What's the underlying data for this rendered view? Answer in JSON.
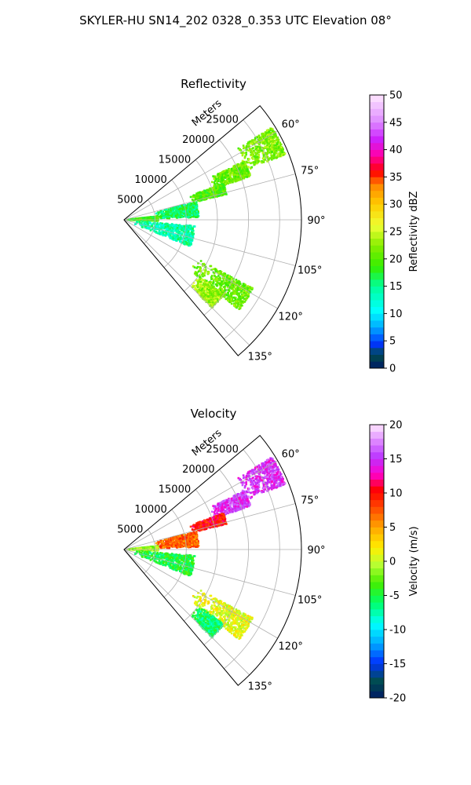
{
  "suptitle": "SKYLER-HU  SN14_202  0328_0.353 UTC Elevation 08°",
  "chart_data": [
    {
      "type": "heatmap",
      "projection": "polar-sector",
      "title": "Reflectivity",
      "radial_label": "Meters",
      "radial_ticks": [
        5000,
        10000,
        15000,
        20000,
        25000
      ],
      "radial_tick_labels": [
        "5000",
        "10000",
        "15000",
        "20000",
        "25000"
      ],
      "rmax": 28500,
      "angle_range": [
        50,
        140
      ],
      "angle_ticks": [
        60,
        75,
        90,
        105,
        120,
        135
      ],
      "angle_tick_labels": [
        "60°",
        "75°",
        "90°",
        "105°",
        "120°",
        "135°"
      ],
      "grid": true,
      "colorbar": {
        "label": "Reflectivity dBZ",
        "range": [
          0,
          50
        ],
        "ticks": [
          0,
          5,
          10,
          15,
          20,
          25,
          30,
          35,
          40,
          45,
          50
        ],
        "tick_labels": [
          "0",
          "5",
          "10",
          "15",
          "20",
          "25",
          "30",
          "35",
          "40",
          "45",
          "50"
        ]
      },
      "echo_regions": [
        {
          "angle": [
            58,
            68
          ],
          "range": [
            21000,
            28000
          ],
          "value": 22
        },
        {
          "angle": [
            64,
            71
          ],
          "range": [
            15000,
            21500
          ],
          "value": 21
        },
        {
          "angle": [
            70,
            76
          ],
          "range": [
            11000,
            17000
          ],
          "value": 20
        },
        {
          "angle": [
            76,
            88
          ],
          "range": [
            4500,
            12000
          ],
          "value": 16
        },
        {
          "angle": [
            84,
            92
          ],
          "range": [
            500,
            5500
          ],
          "value": 19
        },
        {
          "angle": [
            95,
            112
          ],
          "range": [
            1500,
            11500
          ],
          "value": 14
        },
        {
          "angle": [
            118,
            128
          ],
          "range": [
            13000,
            23500
          ],
          "value": 21
        },
        {
          "angle": [
            127,
            135
          ],
          "range": [
            15000,
            20000
          ],
          "value": 23
        }
      ]
    },
    {
      "type": "heatmap",
      "projection": "polar-sector",
      "title": "Velocity",
      "radial_label": "Meters",
      "radial_ticks": [
        5000,
        10000,
        15000,
        20000,
        25000
      ],
      "radial_tick_labels": [
        "5000",
        "10000",
        "15000",
        "20000",
        "25000"
      ],
      "rmax": 28500,
      "angle_range": [
        50,
        140
      ],
      "angle_ticks": [
        60,
        75,
        90,
        105,
        120,
        135
      ],
      "angle_tick_labels": [
        "60°",
        "75°",
        "90°",
        "105°",
        "120°",
        "135°"
      ],
      "grid": true,
      "colorbar": {
        "label": "Velocity (m/s)",
        "range": [
          -20,
          20
        ],
        "ticks": [
          -20,
          -15,
          -10,
          -5,
          0,
          5,
          10,
          15,
          20
        ],
        "tick_labels": [
          "-20",
          "-15",
          "-10",
          "-5",
          "0",
          "5",
          "10",
          "15",
          "20"
        ]
      },
      "echo_regions": [
        {
          "angle": [
            58,
            68
          ],
          "range": [
            21000,
            28000
          ],
          "value": 15
        },
        {
          "angle": [
            64,
            71
          ],
          "range": [
            15000,
            21500
          ],
          "value": 15
        },
        {
          "angle": [
            70,
            76
          ],
          "range": [
            11000,
            17000
          ],
          "value": 10
        },
        {
          "angle": [
            76,
            88
          ],
          "range": [
            4500,
            12000
          ],
          "value": 7
        },
        {
          "angle": [
            84,
            92
          ],
          "range": [
            500,
            5500
          ],
          "value": -1
        },
        {
          "angle": [
            95,
            112
          ],
          "range": [
            1500,
            11500
          ],
          "value": -5
        },
        {
          "angle": [
            118,
            128
          ],
          "range": [
            13000,
            23500
          ],
          "value": 1
        },
        {
          "angle": [
            127,
            135
          ],
          "range": [
            15000,
            20000
          ],
          "value": -6
        }
      ]
    }
  ]
}
